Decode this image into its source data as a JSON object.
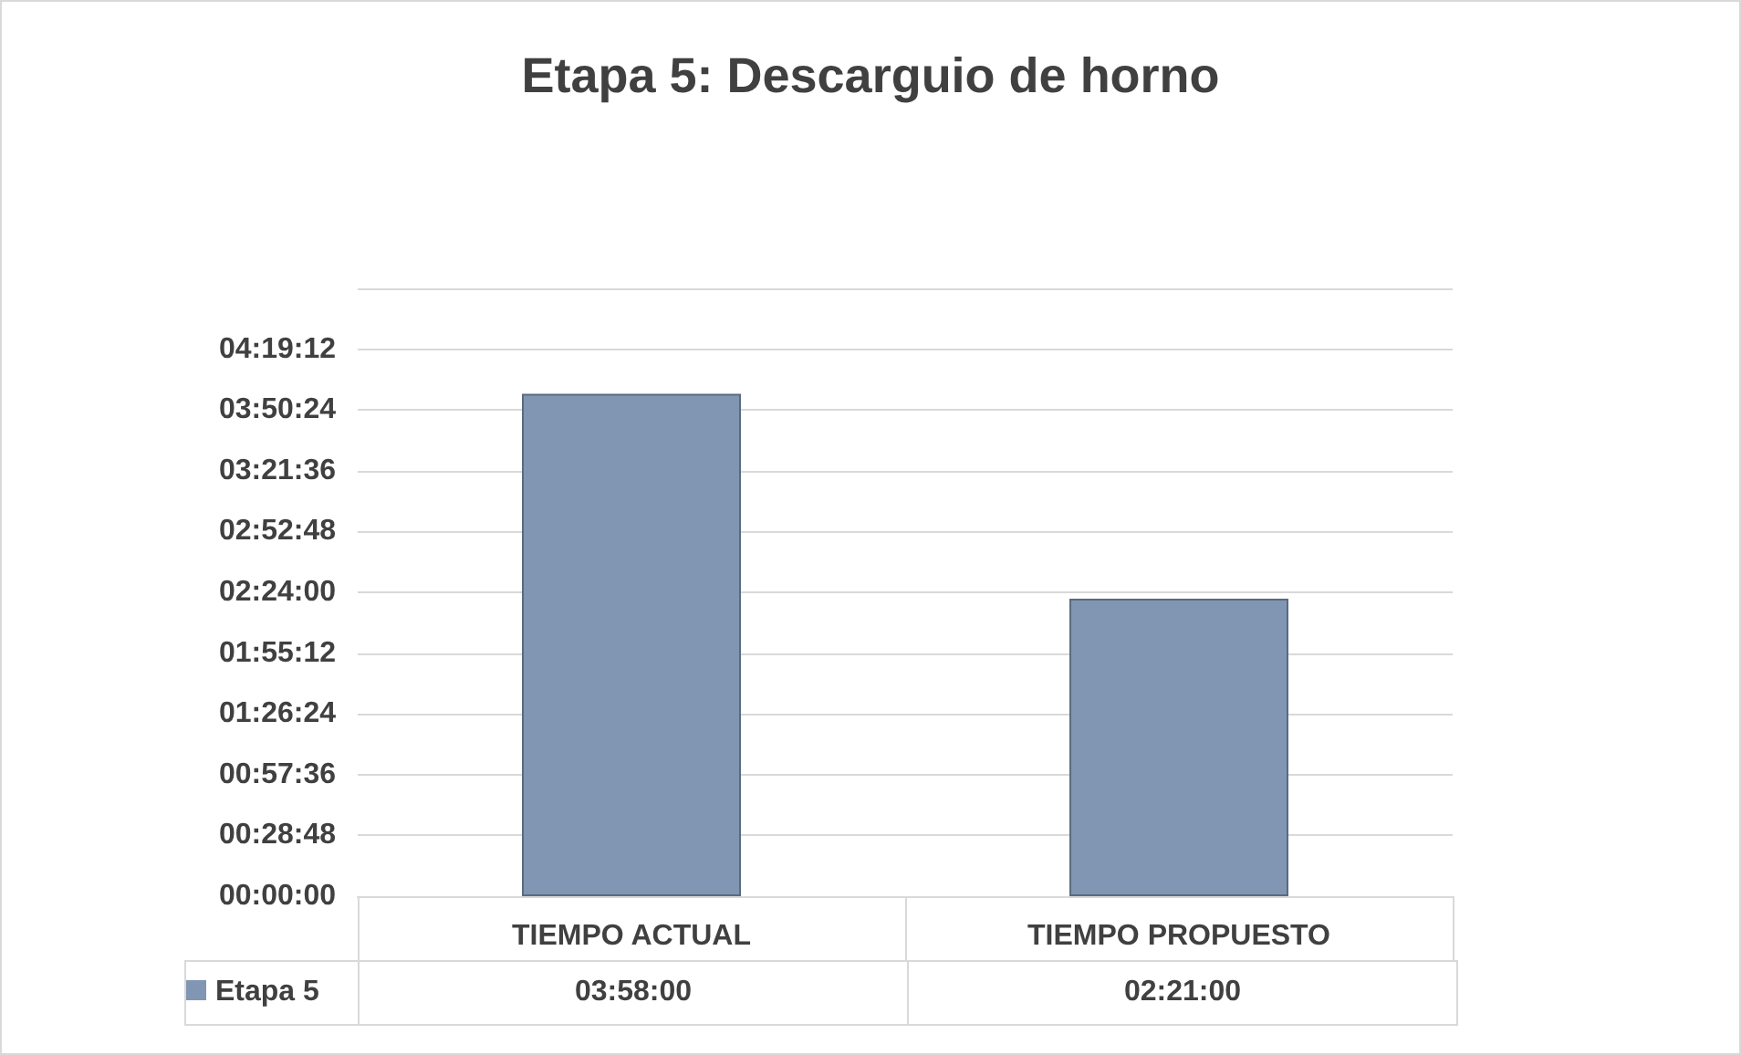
{
  "chart_data": {
    "type": "bar",
    "title": "Etapa 5: Descarguio de horno",
    "categories": [
      "TIEMPO ACTUAL",
      "TIEMPO PROPUESTO"
    ],
    "series": [
      {
        "name": "Etapa 5",
        "color": "#8096b2",
        "values": [
          3.9667,
          2.35
        ],
        "value_labels": [
          "03:58:00",
          "02:21:00"
        ]
      }
    ],
    "ylim": [
      0,
      4.8
    ],
    "yticks": [
      {
        "value": 0,
        "label": "00:00:00"
      },
      {
        "value": 0.48,
        "label": "00:28:48"
      },
      {
        "value": 0.96,
        "label": "00:57:36"
      },
      {
        "value": 1.44,
        "label": "01:26:24"
      },
      {
        "value": 1.92,
        "label": "01:55:12"
      },
      {
        "value": 2.4,
        "label": "02:24:00"
      },
      {
        "value": 2.88,
        "label": "02:52:48"
      },
      {
        "value": 3.36,
        "label": "03:21:36"
      },
      {
        "value": 3.84,
        "label": "03:50:24"
      },
      {
        "value": 4.32,
        "label": "04:19:12"
      },
      {
        "value": 4.8,
        "label": null
      }
    ],
    "grid": "y",
    "legend": "bottom"
  }
}
